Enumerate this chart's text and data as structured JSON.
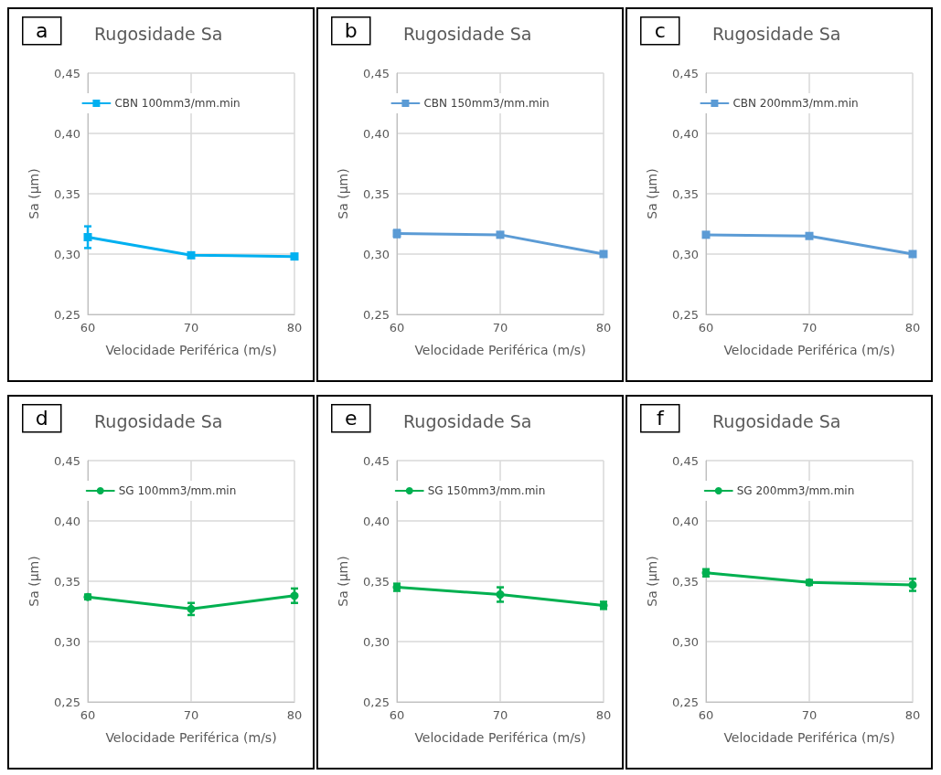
{
  "chart_data": [
    {
      "type": "line",
      "title": "Rugosidade Sa",
      "annotations": [
        "a"
      ],
      "xlabel": "Velocidade Periférica (m/s)",
      "ylabel": "Sa (µm)",
      "x": [
        60,
        70,
        80
      ],
      "xlim": [
        60,
        80
      ],
      "xticks": [
        60,
        70,
        80
      ],
      "ylim": [
        0.25,
        0.45
      ],
      "yticks": [
        {
          "value": 0.25,
          "label": "0,25"
        },
        {
          "value": 0.3,
          "label": "0,30"
        },
        {
          "value": 0.35,
          "label": "0,35"
        },
        {
          "value": 0.4,
          "label": "0,40"
        },
        {
          "value": 0.45,
          "label": "0,45"
        }
      ],
      "grid": true,
      "legend": "top",
      "marker": "square",
      "series": [
        {
          "name": "CBN 100mm3/mm.min",
          "color": "#00b0f0",
          "values": [
            0.314,
            0.299,
            0.298
          ],
          "errors": [
            0.009,
            null,
            null
          ]
        }
      ]
    },
    {
      "type": "line",
      "title": "Rugosidade Sa",
      "annotations": [
        "b"
      ],
      "xlabel": "Velocidade Periférica (m/s)",
      "ylabel": "Sa (µm)",
      "x": [
        60,
        70,
        80
      ],
      "xlim": [
        60,
        80
      ],
      "xticks": [
        60,
        70,
        80
      ],
      "ylim": [
        0.25,
        0.45
      ],
      "yticks": [
        {
          "value": 0.25,
          "label": "0,25"
        },
        {
          "value": 0.3,
          "label": "0,30"
        },
        {
          "value": 0.35,
          "label": "0,35"
        },
        {
          "value": 0.4,
          "label": "0,40"
        },
        {
          "value": 0.45,
          "label": "0,45"
        }
      ],
      "grid": true,
      "legend": "top",
      "marker": "square",
      "series": [
        {
          "name": "CBN 150mm3/mm.min",
          "color": "#5b9bd5",
          "values": [
            0.317,
            0.316,
            0.3
          ],
          "errors": [
            0.003,
            null,
            null
          ]
        }
      ]
    },
    {
      "type": "line",
      "title": "Rugosidade Sa",
      "annotations": [
        "c"
      ],
      "xlabel": "Velocidade Periférica (m/s)",
      "ylabel": "Sa (µm)",
      "x": [
        60,
        70,
        80
      ],
      "xlim": [
        60,
        80
      ],
      "xticks": [
        60,
        70,
        80
      ],
      "ylim": [
        0.25,
        0.45
      ],
      "yticks": [
        {
          "value": 0.25,
          "label": "0,25"
        },
        {
          "value": 0.3,
          "label": "0,30"
        },
        {
          "value": 0.35,
          "label": "0,35"
        },
        {
          "value": 0.4,
          "label": "0,40"
        },
        {
          "value": 0.45,
          "label": "0,45"
        }
      ],
      "grid": true,
      "legend": "top",
      "marker": "square",
      "series": [
        {
          "name": "CBN 200mm3/mm.min",
          "color": "#5b9bd5",
          "values": [
            0.316,
            0.315,
            0.3
          ]
        }
      ]
    },
    {
      "type": "line",
      "title": "Rugosidade Sa",
      "annotations": [
        "d"
      ],
      "xlabel": "Velocidade Periférica (m/s)",
      "ylabel": "Sa (µm)",
      "x": [
        60,
        70,
        80
      ],
      "xlim": [
        60,
        80
      ],
      "xticks": [
        60,
        70,
        80
      ],
      "ylim": [
        0.25,
        0.45
      ],
      "yticks": [
        {
          "value": 0.25,
          "label": "0,25"
        },
        {
          "value": 0.3,
          "label": "0,30"
        },
        {
          "value": 0.35,
          "label": "0,35"
        },
        {
          "value": 0.4,
          "label": "0,40"
        },
        {
          "value": 0.45,
          "label": "0,45"
        }
      ],
      "grid": true,
      "legend": "top",
      "marker": "circle",
      "series": [
        {
          "name": "SG 100mm3/mm.min",
          "color": "#00b050",
          "values": [
            0.337,
            0.327,
            0.338
          ],
          "errors": [
            0.002,
            0.005,
            0.006
          ]
        }
      ]
    },
    {
      "type": "line",
      "title": "Rugosidade Sa",
      "annotations": [
        "e"
      ],
      "xlabel": "Velocidade Periférica (m/s)",
      "ylabel": "Sa (µm)",
      "x": [
        60,
        70,
        80
      ],
      "xlim": [
        60,
        80
      ],
      "xticks": [
        60,
        70,
        80
      ],
      "ylim": [
        0.25,
        0.45
      ],
      "yticks": [
        {
          "value": 0.25,
          "label": "0,25"
        },
        {
          "value": 0.3,
          "label": "0,30"
        },
        {
          "value": 0.35,
          "label": "0,35"
        },
        {
          "value": 0.4,
          "label": "0,40"
        },
        {
          "value": 0.45,
          "label": "0,45"
        }
      ],
      "grid": true,
      "legend": "top",
      "marker": "circle",
      "series": [
        {
          "name": "SG 150mm3/mm.min",
          "color": "#00b050",
          "values": [
            0.345,
            0.339,
            0.33
          ],
          "errors": [
            0.003,
            0.006,
            0.003
          ]
        }
      ]
    },
    {
      "type": "line",
      "title": "Rugosidade Sa",
      "annotations": [
        "f"
      ],
      "xlabel": "Velocidade Periférica (m/s)",
      "ylabel": "Sa (µm)",
      "x": [
        60,
        70,
        80
      ],
      "xlim": [
        60,
        80
      ],
      "xticks": [
        60,
        70,
        80
      ],
      "ylim": [
        0.25,
        0.45
      ],
      "yticks": [
        {
          "value": 0.25,
          "label": "0,25"
        },
        {
          "value": 0.3,
          "label": "0,30"
        },
        {
          "value": 0.35,
          "label": "0,35"
        },
        {
          "value": 0.4,
          "label": "0,40"
        },
        {
          "value": 0.45,
          "label": "0,45"
        }
      ],
      "grid": true,
      "legend": "top",
      "marker": "circle",
      "series": [
        {
          "name": "SG 200mm3/mm.min",
          "color": "#00b050",
          "values": [
            0.357,
            0.349,
            0.347
          ],
          "errors": [
            0.003,
            0.002,
            0.005
          ]
        }
      ]
    }
  ]
}
